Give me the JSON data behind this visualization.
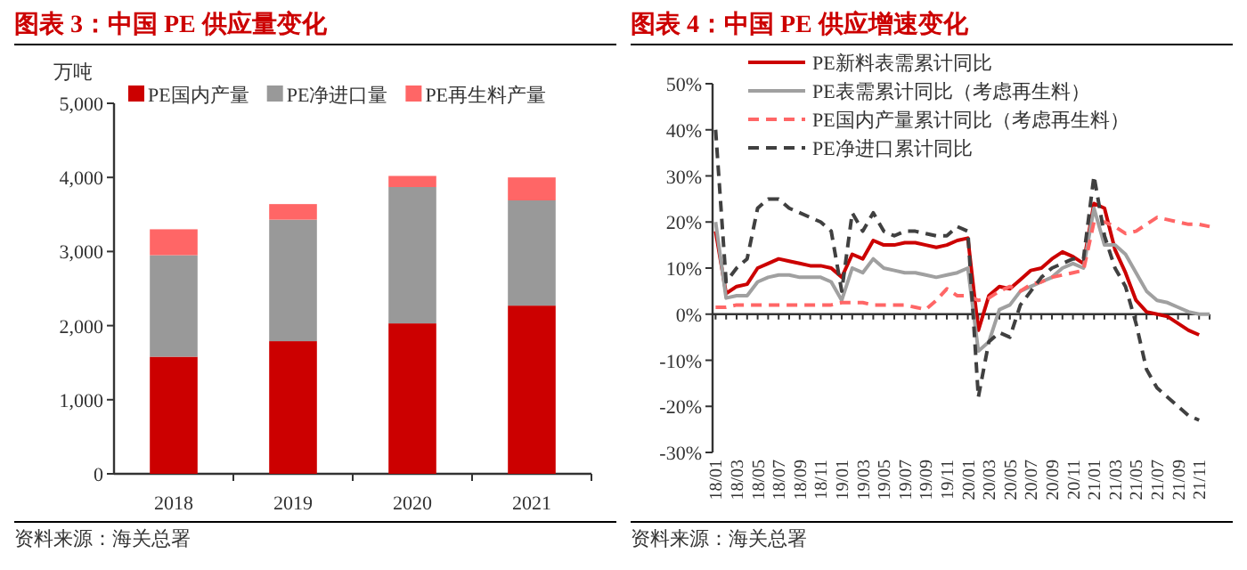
{
  "chart_data": [
    {
      "type": "bar",
      "title": "图表 3：中国 PE 供应量变化",
      "ylabel": "万吨",
      "stacked": true,
      "legend": "top",
      "categories": [
        "2018",
        "2019",
        "2020",
        "2021"
      ],
      "ylim": [
        0,
        5000
      ],
      "yticks": [
        {
          "value": 0,
          "label": "0"
        },
        {
          "value": 1000,
          "label": "1,000"
        },
        {
          "value": 2000,
          "label": "2,000"
        },
        {
          "value": 3000,
          "label": "3,000"
        },
        {
          "value": 4000,
          "label": "4,000"
        },
        {
          "value": 5000,
          "label": "5,000"
        }
      ],
      "series": [
        {
          "name": "PE国内产量",
          "color": "#cc0000",
          "values": [
            1580,
            1790,
            2030,
            2270
          ]
        },
        {
          "name": "PE净进口量",
          "color": "#999999",
          "values": [
            1370,
            1640,
            1840,
            1420
          ]
        },
        {
          "name": "PE再生料产量",
          "color": "#ff6666",
          "values": [
            350,
            210,
            150,
            310
          ]
        }
      ],
      "annotations": [
        "资料来源：海关总署"
      ]
    },
    {
      "type": "line",
      "title": "图表 4：中国 PE 供应增速变化",
      "legend": "top",
      "categories": [
        "18/01",
        null,
        "18/03",
        null,
        "18/05",
        null,
        "18/07",
        null,
        "18/09",
        null,
        "18/11",
        null,
        "19/01",
        null,
        "19/03",
        null,
        "19/05",
        null,
        "19/07",
        null,
        "19/09",
        null,
        "19/11",
        null,
        "20/01",
        null,
        "20/03",
        null,
        "20/05",
        null,
        "20/07",
        null,
        "20/09",
        null,
        "20/11",
        null,
        "21/01",
        null,
        "21/03",
        null,
        "21/05",
        null,
        "21/07",
        null,
        "21/09",
        null,
        "21/11",
        null
      ],
      "ylim": [
        -30,
        50
      ],
      "yticks": [
        {
          "value": -30,
          "label": "-30%"
        },
        {
          "value": -20,
          "label": "-20%"
        },
        {
          "value": -10,
          "label": "-10%"
        },
        {
          "value": 0,
          "label": "0%"
        },
        {
          "value": 10,
          "label": "10%"
        },
        {
          "value": 20,
          "label": "20%"
        },
        {
          "value": 30,
          "label": "30%"
        },
        {
          "value": 40,
          "label": "40%"
        },
        {
          "value": 50,
          "label": "50%"
        }
      ],
      "series": [
        {
          "name": "PE新料表需累计同比",
          "color": "#cc0000",
          "line_style": "solid",
          "values": [
            18,
            4.5,
            6,
            6.5,
            10,
            11,
            12,
            11.5,
            11,
            10.5,
            10.5,
            10,
            8,
            13,
            12,
            16,
            15,
            15,
            15.5,
            15.5,
            15,
            14.5,
            15,
            16,
            16.5,
            -3.5,
            4,
            6,
            5.5,
            7.5,
            9.5,
            10,
            12,
            13.5,
            12.5,
            11,
            24,
            23,
            14,
            9,
            3,
            0.5,
            0,
            -0.5,
            -2,
            -3.5,
            -4.5,
            null
          ]
        },
        {
          "name": "PE表需累计同比（考虑再生料）",
          "color": "#a0a0a0",
          "line_style": "solid",
          "values": [
            20,
            3.5,
            4,
            4,
            7,
            8,
            8.5,
            8.5,
            8,
            8,
            8,
            7,
            3,
            10,
            9,
            12,
            10,
            9.5,
            9,
            9,
            8.5,
            8,
            8.5,
            9,
            10,
            -8,
            -6,
            1,
            2,
            5,
            6,
            7,
            8,
            10,
            11,
            10,
            23,
            15,
            15,
            13,
            9,
            5,
            3,
            2.5,
            1.5,
            0.5,
            0,
            0
          ]
        },
        {
          "name": "PE国内产量累计同比（考虑再生料）",
          "color": "#ff6666",
          "line_style": "dashed",
          "values": [
            1.5,
            1.5,
            2,
            2,
            2,
            2,
            2,
            2,
            2,
            2,
            2,
            2,
            2.5,
            2.5,
            2.5,
            2,
            2,
            2,
            2,
            1.5,
            1,
            3,
            5.5,
            4,
            4,
            3,
            3.5,
            5,
            6,
            5,
            6.5,
            7,
            8,
            8.5,
            9,
            9.5,
            20,
            20,
            19,
            17.5,
            18,
            19.5,
            21,
            20.5,
            20,
            19.5,
            19.5,
            19
          ]
        },
        {
          "name": "PE净进口累计同比",
          "color": "#404040",
          "line_style": "dashed",
          "values": [
            40,
            7,
            10,
            12,
            23,
            25,
            25,
            23,
            22,
            21,
            20,
            18,
            5,
            22,
            18,
            22,
            18,
            17,
            18,
            18,
            17.5,
            17,
            17,
            19,
            18,
            -18,
            -6,
            -4,
            -5,
            2,
            5,
            8,
            10,
            11,
            12,
            12,
            30,
            17,
            10,
            6,
            -2,
            -12,
            -16,
            -18,
            -20,
            -22,
            -23,
            null
          ]
        }
      ],
      "annotations": [
        "资料来源：海关总署"
      ]
    }
  ]
}
